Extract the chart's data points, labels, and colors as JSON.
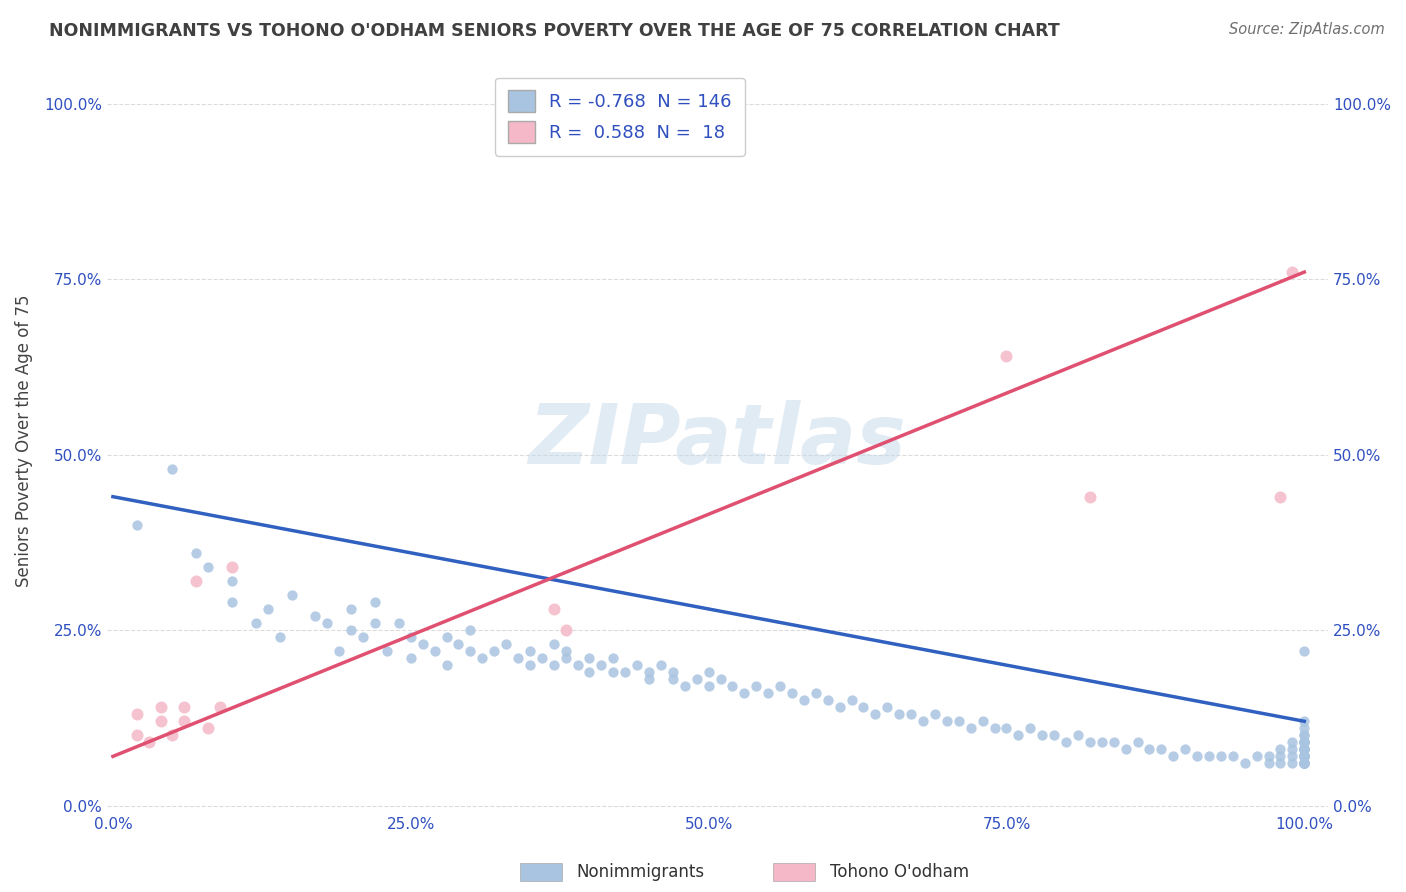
{
  "title": "NONIMMIGRANTS VS TOHONO O'ODHAM SENIORS POVERTY OVER THE AGE OF 75 CORRELATION CHART",
  "source": "Source: ZipAtlas.com",
  "ylabel": "Seniors Poverty Over the Age of 75",
  "watermark": "ZIPatlas",
  "blue_R": -0.768,
  "blue_N": 146,
  "pink_R": 0.588,
  "pink_N": 18,
  "blue_color": "#a8c4e0",
  "pink_color": "#f4b8c8",
  "blue_line_color": "#3060c0",
  "pink_line_color": "#e05070",
  "title_color": "#404040",
  "source_color": "#707070",
  "label_color": "#3050c0",
  "legend_label1": "Nonimmigrants",
  "legend_label2": "Tohono O'odham",
  "blue_scatter_x": [
    0.02,
    0.05,
    0.07,
    0.08,
    0.1,
    0.1,
    0.12,
    0.13,
    0.14,
    0.15,
    0.17,
    0.18,
    0.19,
    0.2,
    0.2,
    0.21,
    0.22,
    0.22,
    0.23,
    0.24,
    0.25,
    0.25,
    0.26,
    0.27,
    0.28,
    0.28,
    0.29,
    0.3,
    0.3,
    0.31,
    0.32,
    0.33,
    0.34,
    0.35,
    0.35,
    0.36,
    0.37,
    0.37,
    0.38,
    0.38,
    0.39,
    0.4,
    0.4,
    0.41,
    0.42,
    0.42,
    0.43,
    0.44,
    0.45,
    0.45,
    0.46,
    0.47,
    0.47,
    0.48,
    0.49,
    0.5,
    0.5,
    0.51,
    0.52,
    0.53,
    0.54,
    0.55,
    0.56,
    0.57,
    0.58,
    0.59,
    0.6,
    0.61,
    0.62,
    0.63,
    0.64,
    0.65,
    0.66,
    0.67,
    0.68,
    0.69,
    0.7,
    0.71,
    0.72,
    0.73,
    0.74,
    0.75,
    0.76,
    0.77,
    0.78,
    0.79,
    0.8,
    0.81,
    0.82,
    0.83,
    0.84,
    0.85,
    0.86,
    0.87,
    0.88,
    0.89,
    0.9,
    0.91,
    0.92,
    0.93,
    0.94,
    0.95,
    0.96,
    0.97,
    0.97,
    0.98,
    0.98,
    0.98,
    0.99,
    0.99,
    0.99,
    0.99,
    1.0,
    1.0,
    1.0,
    1.0,
    1.0,
    1.0,
    1.0,
    1.0,
    1.0,
    1.0,
    1.0,
    1.0,
    1.0,
    1.0,
    1.0,
    1.0,
    1.0,
    1.0,
    1.0,
    1.0,
    1.0,
    1.0,
    1.0,
    1.0,
    1.0,
    1.0,
    1.0,
    1.0,
    1.0,
    1.0,
    1.0,
    1.0,
    1.0,
    1.0
  ],
  "blue_scatter_y": [
    0.4,
    0.48,
    0.36,
    0.34,
    0.29,
    0.32,
    0.26,
    0.28,
    0.24,
    0.3,
    0.27,
    0.26,
    0.22,
    0.25,
    0.28,
    0.24,
    0.26,
    0.29,
    0.22,
    0.26,
    0.24,
    0.21,
    0.23,
    0.22,
    0.24,
    0.2,
    0.23,
    0.22,
    0.25,
    0.21,
    0.22,
    0.23,
    0.21,
    0.2,
    0.22,
    0.21,
    0.23,
    0.2,
    0.22,
    0.21,
    0.2,
    0.19,
    0.21,
    0.2,
    0.19,
    0.21,
    0.19,
    0.2,
    0.18,
    0.19,
    0.2,
    0.18,
    0.19,
    0.17,
    0.18,
    0.19,
    0.17,
    0.18,
    0.17,
    0.16,
    0.17,
    0.16,
    0.17,
    0.16,
    0.15,
    0.16,
    0.15,
    0.14,
    0.15,
    0.14,
    0.13,
    0.14,
    0.13,
    0.13,
    0.12,
    0.13,
    0.12,
    0.12,
    0.11,
    0.12,
    0.11,
    0.11,
    0.1,
    0.11,
    0.1,
    0.1,
    0.09,
    0.1,
    0.09,
    0.09,
    0.09,
    0.08,
    0.09,
    0.08,
    0.08,
    0.07,
    0.08,
    0.07,
    0.07,
    0.07,
    0.07,
    0.06,
    0.07,
    0.06,
    0.07,
    0.06,
    0.07,
    0.08,
    0.06,
    0.07,
    0.08,
    0.09,
    0.06,
    0.07,
    0.08,
    0.09,
    0.1,
    0.11,
    0.12,
    0.07,
    0.08,
    0.09,
    0.06,
    0.07,
    0.08,
    0.09,
    0.1,
    0.06,
    0.07,
    0.08,
    0.09,
    0.06,
    0.07,
    0.08,
    0.22,
    0.06,
    0.07,
    0.08,
    0.09,
    0.06,
    0.07,
    0.08,
    0.06,
    0.07,
    0.06,
    0.07
  ],
  "pink_scatter_x": [
    0.02,
    0.02,
    0.03,
    0.04,
    0.04,
    0.05,
    0.06,
    0.06,
    0.07,
    0.08,
    0.09,
    0.1,
    0.37,
    0.38,
    0.75,
    0.82,
    0.98,
    0.99
  ],
  "pink_scatter_y": [
    0.13,
    0.1,
    0.09,
    0.14,
    0.12,
    0.1,
    0.12,
    0.14,
    0.32,
    0.11,
    0.14,
    0.34,
    0.28,
    0.25,
    0.64,
    0.44,
    0.44,
    0.76
  ],
  "blue_line_x0": 0.0,
  "blue_line_y0": 0.44,
  "blue_line_x1": 1.0,
  "blue_line_y1": 0.12,
  "pink_line_x0": 0.0,
  "pink_line_y0": 0.07,
  "pink_line_x1": 1.0,
  "pink_line_y1": 0.76,
  "ytick_labels": [
    "0.0%",
    "25.0%",
    "50.0%",
    "75.0%",
    "100.0%"
  ],
  "ytick_values": [
    0.0,
    0.25,
    0.5,
    0.75,
    1.0
  ],
  "xtick_labels": [
    "0.0%",
    "25.0%",
    "50.0%",
    "75.0%",
    "100.0%"
  ],
  "xtick_values": [
    0.0,
    0.25,
    0.5,
    0.75,
    1.0
  ],
  "background_color": "#ffffff",
  "grid_color": "#d8d8d8"
}
